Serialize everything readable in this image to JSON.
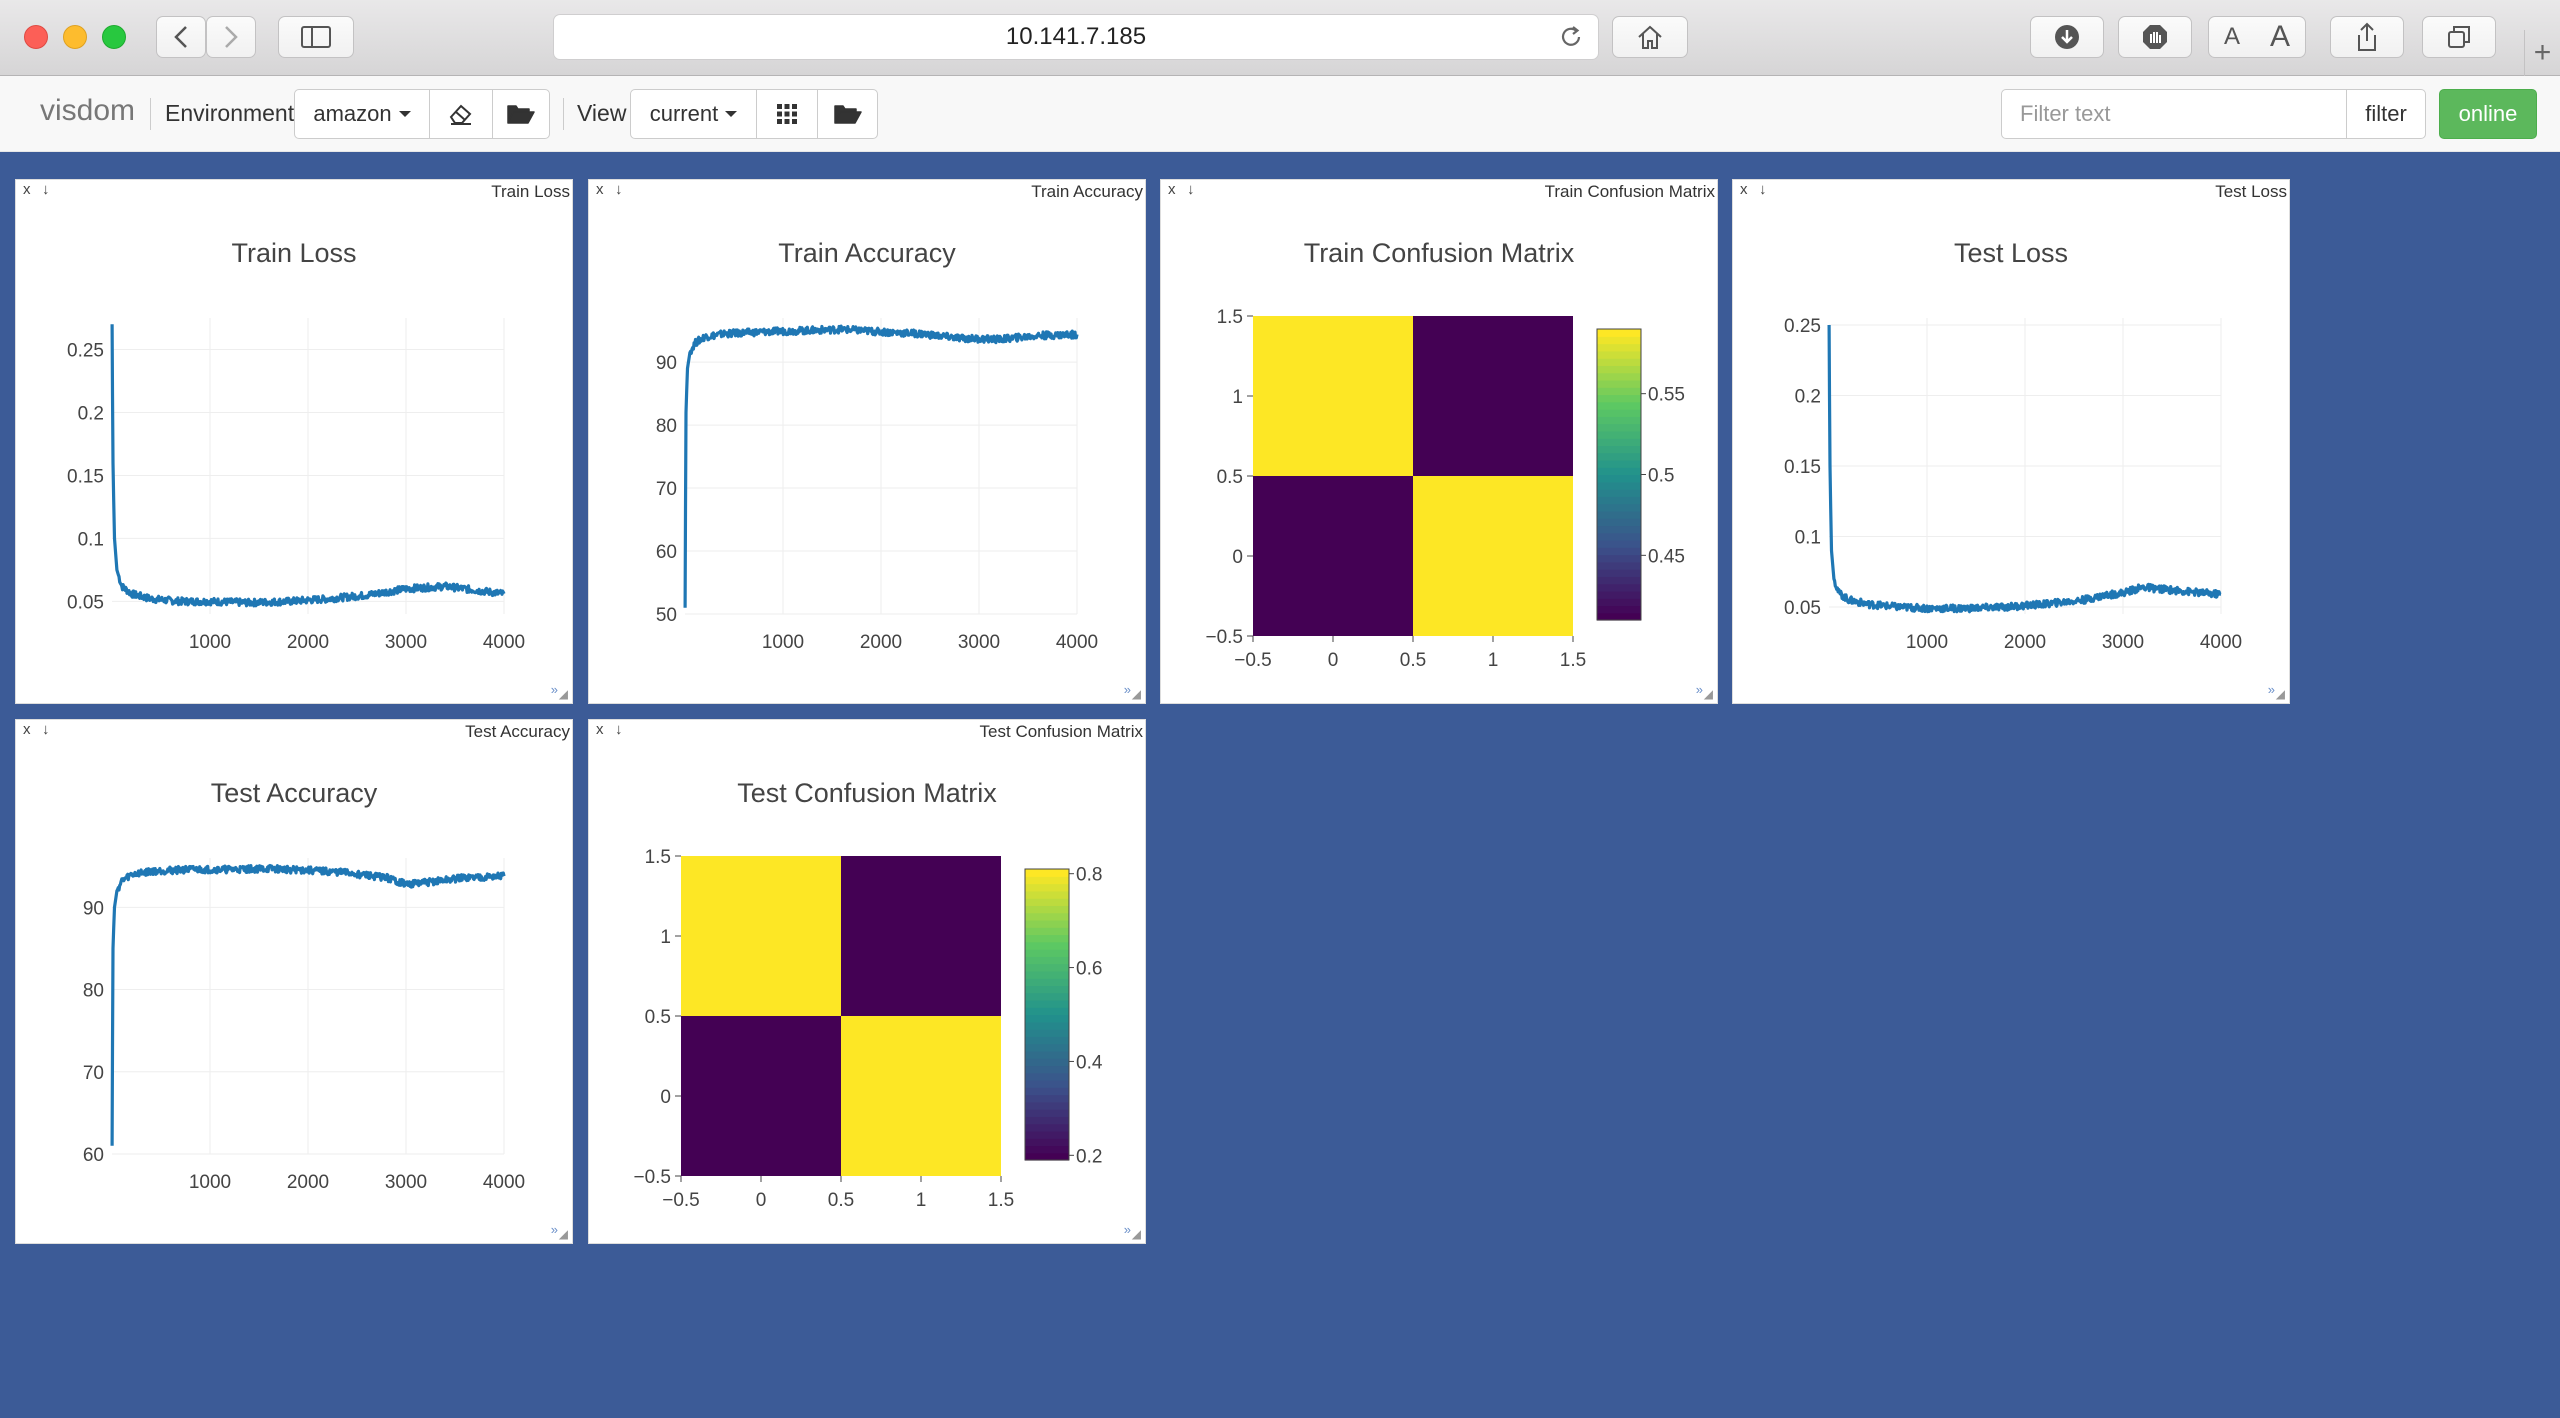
{
  "browser": {
    "url": "10.141.7.185"
  },
  "navbar": {
    "brand": "visdom",
    "environment_label": "Environment",
    "environment_value": "amazon",
    "view_label": "View",
    "view_value": "current",
    "filter_placeholder": "Filter text",
    "filter_button": "filter",
    "status_button": "online"
  },
  "colors": {
    "background": "#3c5b97",
    "line": "#1f77b4",
    "online": "#5cb85c",
    "viridis_low": "#440154",
    "viridis_high": "#fde725"
  },
  "panes": [
    {
      "name": "Train Loss",
      "close": "x",
      "download": "↓"
    },
    {
      "name": "Train Accuracy",
      "close": "x",
      "download": "↓"
    },
    {
      "name": "Train Confusion Matrix",
      "close": "x",
      "download": "↓"
    },
    {
      "name": "Test Loss",
      "close": "x",
      "download": "↓"
    },
    {
      "name": "Test Accuracy",
      "close": "x",
      "download": "↓"
    },
    {
      "name": "Test Confusion Matrix",
      "close": "x",
      "download": "↓"
    }
  ],
  "chart_data": [
    {
      "type": "line",
      "title": "Train Loss",
      "x": [
        1,
        10,
        25,
        50,
        100,
        200,
        400,
        700,
        1000,
        1400,
        1800,
        2200,
        2600,
        3000,
        3400,
        3800,
        4000
      ],
      "y": [
        0.27,
        0.16,
        0.1,
        0.075,
        0.062,
        0.056,
        0.052,
        0.05,
        0.05,
        0.049,
        0.05,
        0.052,
        0.055,
        0.06,
        0.062,
        0.058,
        0.056
      ],
      "xticks": [
        "1000",
        "2000",
        "3000",
        "4000"
      ],
      "yticks": [
        "0.05",
        "0.1",
        "0.15",
        "0.2",
        "0.25"
      ],
      "xlim": [
        0,
        4000
      ],
      "ylim": [
        0.04,
        0.275
      ],
      "grid": true
    },
    {
      "type": "line",
      "title": "Train Accuracy",
      "x": [
        1,
        10,
        25,
        50,
        100,
        200,
        400,
        800,
        1200,
        1600,
        2000,
        2400,
        2800,
        3200,
        3600,
        4000
      ],
      "y": [
        51,
        82,
        89,
        91.5,
        93,
        94,
        94.5,
        94.8,
        95,
        95.2,
        94.8,
        94.5,
        93.8,
        93.6,
        94.2,
        94.4
      ],
      "xticks": [
        "1000",
        "2000",
        "3000",
        "4000"
      ],
      "yticks": [
        "50",
        "60",
        "70",
        "80",
        "90"
      ],
      "xlim": [
        0,
        4000
      ],
      "ylim": [
        50,
        97
      ],
      "grid": true
    },
    {
      "type": "heatmap",
      "title": "Train Confusion Matrix",
      "x": [
        0,
        1
      ],
      "y": [
        0,
        1
      ],
      "z": [
        [
          0.41,
          0.59
        ],
        [
          0.59,
          0.41
        ]
      ],
      "xticks": [
        "−0.5",
        "0",
        "0.5",
        "1",
        "1.5"
      ],
      "yticks": [
        "−0.5",
        "0",
        "0.5",
        "1",
        "1.5"
      ],
      "colorbar_ticks": [
        "0.45",
        "0.5",
        "0.55"
      ],
      "colorbar_range": [
        0.41,
        0.59
      ],
      "colorscale": "viridis"
    },
    {
      "type": "line",
      "title": "Test Loss",
      "x": [
        1,
        10,
        25,
        50,
        100,
        200,
        400,
        700,
        1000,
        1400,
        1800,
        2200,
        2600,
        2800,
        3000,
        3200,
        3500,
        3800,
        4000
      ],
      "y": [
        0.25,
        0.15,
        0.09,
        0.07,
        0.06,
        0.055,
        0.052,
        0.05,
        0.049,
        0.049,
        0.05,
        0.052,
        0.055,
        0.058,
        0.06,
        0.064,
        0.062,
        0.06,
        0.059
      ],
      "xticks": [
        "1000",
        "2000",
        "3000",
        "4000"
      ],
      "yticks": [
        "0.05",
        "0.1",
        "0.15",
        "0.2",
        "0.25"
      ],
      "xlim": [
        0,
        4000
      ],
      "ylim": [
        0.045,
        0.255
      ],
      "grid": true
    },
    {
      "type": "line",
      "title": "Test Accuracy",
      "x": [
        1,
        10,
        25,
        50,
        100,
        200,
        400,
        800,
        1200,
        1600,
        2000,
        2400,
        2800,
        3000,
        3200,
        3600,
        4000
      ],
      "y": [
        61,
        85,
        90,
        92,
        93.2,
        94,
        94.4,
        94.6,
        94.6,
        94.7,
        94.5,
        94.2,
        93.6,
        92.8,
        93.0,
        93.6,
        93.8
      ],
      "xticks": [
        "1000",
        "2000",
        "3000",
        "4000"
      ],
      "yticks": [
        "60",
        "70",
        "80",
        "90"
      ],
      "xlim": [
        0,
        4000
      ],
      "ylim": [
        60,
        96
      ],
      "grid": true
    },
    {
      "type": "heatmap",
      "title": "Test Confusion Matrix",
      "x": [
        0,
        1
      ],
      "y": [
        0,
        1
      ],
      "z": [
        [
          0.19,
          0.81
        ],
        [
          0.81,
          0.19
        ]
      ],
      "xticks": [
        "−0.5",
        "0",
        "0.5",
        "1",
        "1.5"
      ],
      "yticks": [
        "−0.5",
        "0",
        "0.5",
        "1",
        "1.5"
      ],
      "colorbar_ticks": [
        "0.2",
        "0.4",
        "0.6",
        "0.8"
      ],
      "colorbar_range": [
        0.19,
        0.81
      ],
      "colorscale": "viridis"
    }
  ]
}
